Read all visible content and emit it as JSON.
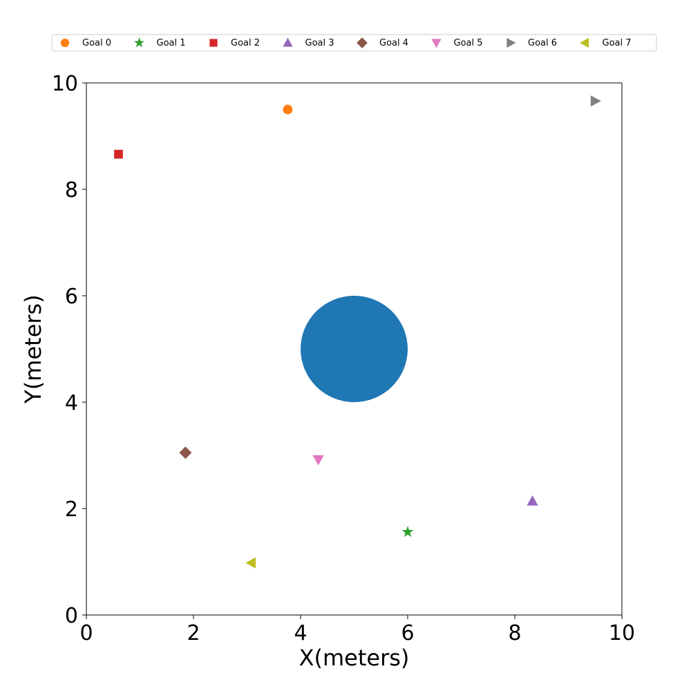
{
  "chart_data": {
    "type": "scatter",
    "title": "",
    "xlabel": "X(meters)",
    "ylabel": "Y(meters)",
    "xlim": [
      0,
      10
    ],
    "ylim": [
      0,
      10
    ],
    "x_ticks": [
      "0",
      "2",
      "4",
      "6",
      "8",
      "10"
    ],
    "y_ticks": [
      "0",
      "2",
      "4",
      "6",
      "8",
      "10"
    ],
    "grid": false,
    "legend": "top",
    "obstacle": {
      "center": [
        5,
        5
      ],
      "radius": 1.0,
      "color": "#1f77b4"
    },
    "series": [
      {
        "name": "Goal 0",
        "marker": "circle",
        "color": "#ff7f0e",
        "x": [
          3.76
        ],
        "y": [
          9.5
        ]
      },
      {
        "name": "Goal 1",
        "marker": "star",
        "color": "#2ca02c",
        "x": [
          6.0
        ],
        "y": [
          1.56
        ]
      },
      {
        "name": "Goal 2",
        "marker": "square",
        "color": "#d62728",
        "x": [
          0.6
        ],
        "y": [
          8.66
        ]
      },
      {
        "name": "Goal 3",
        "marker": "triangle-up",
        "color": "#9467bd",
        "x": [
          8.33
        ],
        "y": [
          2.14
        ]
      },
      {
        "name": "Goal 4",
        "marker": "diamond",
        "color": "#8c564b",
        "x": [
          1.85
        ],
        "y": [
          3.05
        ]
      },
      {
        "name": "Goal 5",
        "marker": "triangle-down",
        "color": "#e377c2",
        "x": [
          4.33
        ],
        "y": [
          2.92
        ]
      },
      {
        "name": "Goal 6",
        "marker": "triangle-right",
        "color": "#7f7f7f",
        "x": [
          9.5
        ],
        "y": [
          9.66
        ]
      },
      {
        "name": "Goal 7",
        "marker": "triangle-left",
        "color": "#bcbd22",
        "x": [
          3.08
        ],
        "y": [
          0.98
        ]
      }
    ]
  }
}
